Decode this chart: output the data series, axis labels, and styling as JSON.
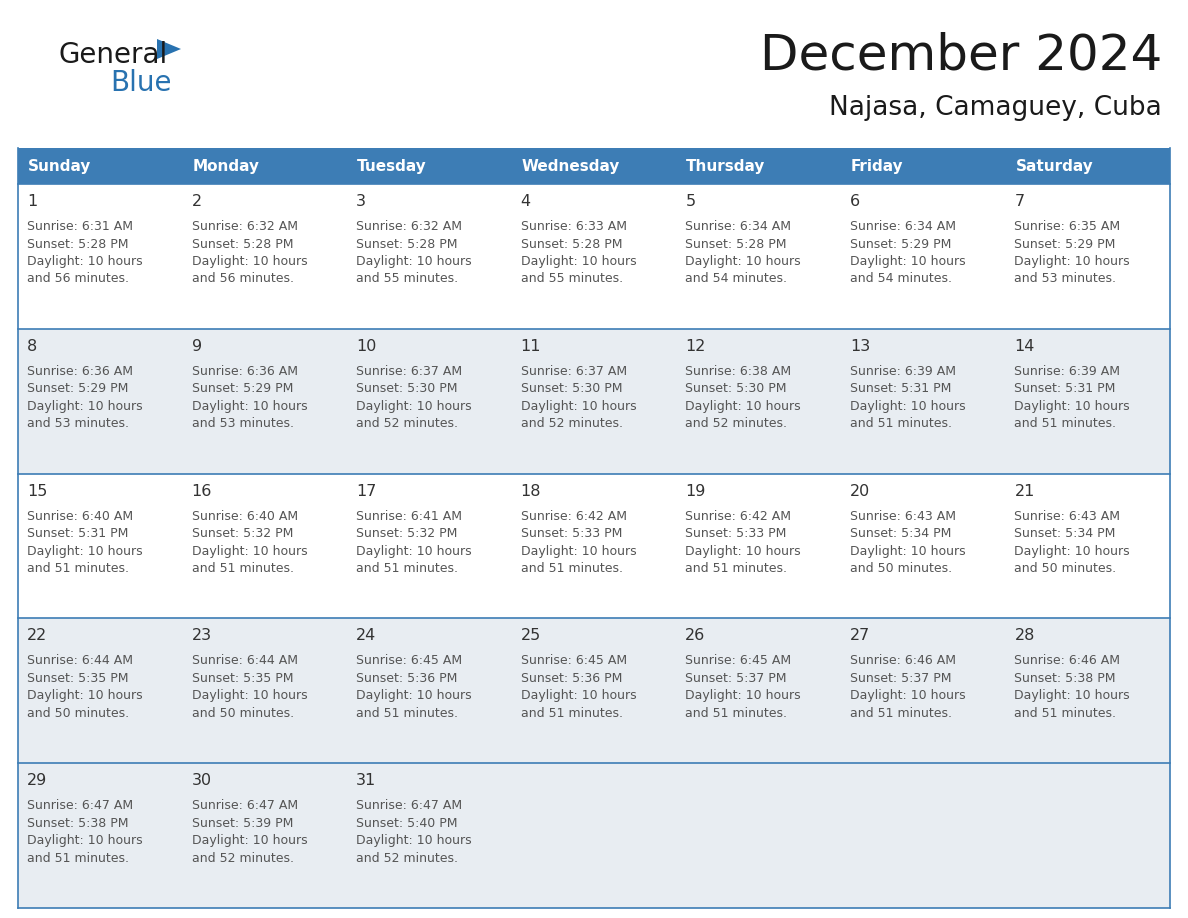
{
  "title": "December 2024",
  "subtitle": "Najasa, Camaguey, Cuba",
  "days_of_week": [
    "Sunday",
    "Monday",
    "Tuesday",
    "Wednesday",
    "Thursday",
    "Friday",
    "Saturday"
  ],
  "header_bg": "#3d7db5",
  "header_text_color": "#ffffff",
  "row_colors": [
    "#ffffff",
    "#e8edf2",
    "#ffffff",
    "#e8edf2",
    "#e8edf2"
  ],
  "divider_color": "#3d7db5",
  "text_color": "#333333",
  "calendar_data": [
    {
      "day": 1,
      "col": 0,
      "row": 0,
      "sunrise": "6:31 AM",
      "sunset": "5:28 PM",
      "daylight_min": "56"
    },
    {
      "day": 2,
      "col": 1,
      "row": 0,
      "sunrise": "6:32 AM",
      "sunset": "5:28 PM",
      "daylight_min": "56"
    },
    {
      "day": 3,
      "col": 2,
      "row": 0,
      "sunrise": "6:32 AM",
      "sunset": "5:28 PM",
      "daylight_min": "55"
    },
    {
      "day": 4,
      "col": 3,
      "row": 0,
      "sunrise": "6:33 AM",
      "sunset": "5:28 PM",
      "daylight_min": "55"
    },
    {
      "day": 5,
      "col": 4,
      "row": 0,
      "sunrise": "6:34 AM",
      "sunset": "5:28 PM",
      "daylight_min": "54"
    },
    {
      "day": 6,
      "col": 5,
      "row": 0,
      "sunrise": "6:34 AM",
      "sunset": "5:29 PM",
      "daylight_min": "54"
    },
    {
      "day": 7,
      "col": 6,
      "row": 0,
      "sunrise": "6:35 AM",
      "sunset": "5:29 PM",
      "daylight_min": "53"
    },
    {
      "day": 8,
      "col": 0,
      "row": 1,
      "sunrise": "6:36 AM",
      "sunset": "5:29 PM",
      "daylight_min": "53"
    },
    {
      "day": 9,
      "col": 1,
      "row": 1,
      "sunrise": "6:36 AM",
      "sunset": "5:29 PM",
      "daylight_min": "53"
    },
    {
      "day": 10,
      "col": 2,
      "row": 1,
      "sunrise": "6:37 AM",
      "sunset": "5:30 PM",
      "daylight_min": "52"
    },
    {
      "day": 11,
      "col": 3,
      "row": 1,
      "sunrise": "6:37 AM",
      "sunset": "5:30 PM",
      "daylight_min": "52"
    },
    {
      "day": 12,
      "col": 4,
      "row": 1,
      "sunrise": "6:38 AM",
      "sunset": "5:30 PM",
      "daylight_min": "52"
    },
    {
      "day": 13,
      "col": 5,
      "row": 1,
      "sunrise": "6:39 AM",
      "sunset": "5:31 PM",
      "daylight_min": "51"
    },
    {
      "day": 14,
      "col": 6,
      "row": 1,
      "sunrise": "6:39 AM",
      "sunset": "5:31 PM",
      "daylight_min": "51"
    },
    {
      "day": 15,
      "col": 0,
      "row": 2,
      "sunrise": "6:40 AM",
      "sunset": "5:31 PM",
      "daylight_min": "51"
    },
    {
      "day": 16,
      "col": 1,
      "row": 2,
      "sunrise": "6:40 AM",
      "sunset": "5:32 PM",
      "daylight_min": "51"
    },
    {
      "day": 17,
      "col": 2,
      "row": 2,
      "sunrise": "6:41 AM",
      "sunset": "5:32 PM",
      "daylight_min": "51"
    },
    {
      "day": 18,
      "col": 3,
      "row": 2,
      "sunrise": "6:42 AM",
      "sunset": "5:33 PM",
      "daylight_min": "51"
    },
    {
      "day": 19,
      "col": 4,
      "row": 2,
      "sunrise": "6:42 AM",
      "sunset": "5:33 PM",
      "daylight_min": "51"
    },
    {
      "day": 20,
      "col": 5,
      "row": 2,
      "sunrise": "6:43 AM",
      "sunset": "5:34 PM",
      "daylight_min": "50"
    },
    {
      "day": 21,
      "col": 6,
      "row": 2,
      "sunrise": "6:43 AM",
      "sunset": "5:34 PM",
      "daylight_min": "50"
    },
    {
      "day": 22,
      "col": 0,
      "row": 3,
      "sunrise": "6:44 AM",
      "sunset": "5:35 PM",
      "daylight_min": "50"
    },
    {
      "day": 23,
      "col": 1,
      "row": 3,
      "sunrise": "6:44 AM",
      "sunset": "5:35 PM",
      "daylight_min": "50"
    },
    {
      "day": 24,
      "col": 2,
      "row": 3,
      "sunrise": "6:45 AM",
      "sunset": "5:36 PM",
      "daylight_min": "51"
    },
    {
      "day": 25,
      "col": 3,
      "row": 3,
      "sunrise": "6:45 AM",
      "sunset": "5:36 PM",
      "daylight_min": "51"
    },
    {
      "day": 26,
      "col": 4,
      "row": 3,
      "sunrise": "6:45 AM",
      "sunset": "5:37 PM",
      "daylight_min": "51"
    },
    {
      "day": 27,
      "col": 5,
      "row": 3,
      "sunrise": "6:46 AM",
      "sunset": "5:37 PM",
      "daylight_min": "51"
    },
    {
      "day": 28,
      "col": 6,
      "row": 3,
      "sunrise": "6:46 AM",
      "sunset": "5:38 PM",
      "daylight_min": "51"
    },
    {
      "day": 29,
      "col": 0,
      "row": 4,
      "sunrise": "6:47 AM",
      "sunset": "5:38 PM",
      "daylight_min": "51"
    },
    {
      "day": 30,
      "col": 1,
      "row": 4,
      "sunrise": "6:47 AM",
      "sunset": "5:39 PM",
      "daylight_min": "52"
    },
    {
      "day": 31,
      "col": 2,
      "row": 4,
      "sunrise": "6:47 AM",
      "sunset": "5:40 PM",
      "daylight_min": "52"
    }
  ],
  "num_rows": 5,
  "logo_triangle_color": "#2872b0",
  "logo_general_color": "#1a1a1a",
  "logo_blue_color": "#2872b0"
}
